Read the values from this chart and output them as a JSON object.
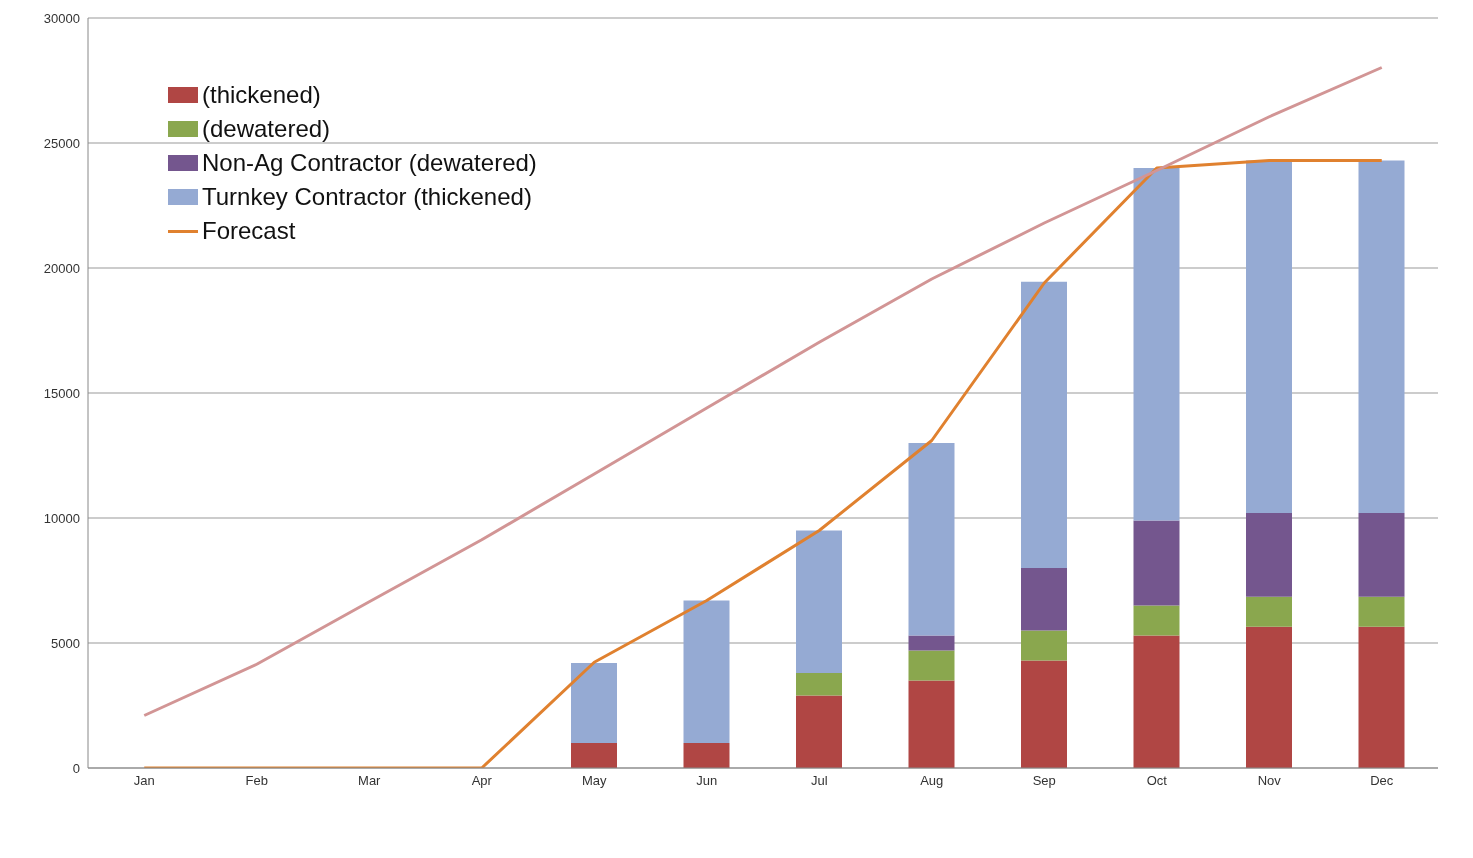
{
  "chart_data": {
    "type": "bar",
    "stacked": true,
    "categories": [
      "Jan",
      "Feb",
      "Mar",
      "Apr",
      "May",
      "Jun",
      "Jul",
      "Aug",
      "Sep",
      "Oct",
      "Nov",
      "Dec"
    ],
    "series": [
      {
        "name": "(thickened)",
        "color": "#b04644",
        "values": [
          null,
          null,
          null,
          null,
          1000,
          1000,
          2900,
          3500,
          4300,
          5300,
          5650,
          5650
        ]
      },
      {
        "name": "(dewatered)",
        "color": "#8aa74e",
        "values": [
          null,
          null,
          null,
          null,
          null,
          null,
          900,
          1200,
          1200,
          1200,
          1200,
          1200
        ]
      },
      {
        "name": "Non-Ag Contractor (dewatered)",
        "color": "#74568e",
        "values": [
          null,
          null,
          null,
          null,
          null,
          null,
          null,
          600,
          2500,
          3400,
          3350,
          3350
        ]
      },
      {
        "name": "Turnkey Contractor (thickened)",
        "color": "#95aad3",
        "values": [
          null,
          null,
          null,
          null,
          3200,
          5700,
          5700,
          7700,
          11450,
          14100,
          14100,
          14100
        ]
      },
      {
        "name": "Forecast",
        "type": "line",
        "color": "#e0812f",
        "values": [
          0,
          0,
          0,
          0,
          4230,
          6700,
          9500,
          13100,
          19400,
          24000,
          24300,
          24300
        ]
      },
      {
        "type": "line",
        "color": "#d29595",
        "values": [
          2100,
          4150,
          6650,
          9130,
          11760,
          14400,
          17030,
          19560,
          21800,
          23900,
          26050,
          28020
        ]
      }
    ],
    "ylim": [
      0,
      30000
    ],
    "yticks": [
      0,
      5000,
      10000,
      15000,
      20000,
      25000,
      30000
    ],
    "grid": "y",
    "legend": "top left",
    "marker": "none"
  }
}
